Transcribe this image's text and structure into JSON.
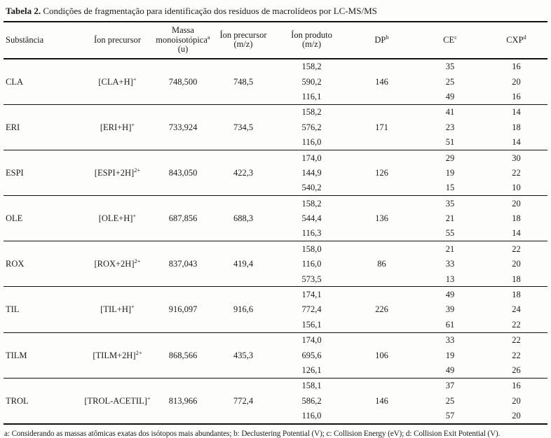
{
  "page": {
    "title_label": "Tabela 2.",
    "title_text": "Condições de fragmentação para identificação dos resíduos de macrolídeos por LC-MS/MS",
    "footnote": "a: Considerando as massas atômicas exatas dos isótopos mais abundantes; b: Declustering Potential (V); c: Collision Energy (eV); d: Collision Exit Potential (V)."
  },
  "table": {
    "headers": {
      "substancia": "Substância",
      "ion_precursor": "Íon precursor",
      "massa_l1": "Massa",
      "massa_l2": "monoisotópica",
      "massa_l2_sup": "a",
      "massa_l3": "(u)",
      "precursor_mz_l1": "Íon precursor",
      "precursor_mz_l2": "(m/z)",
      "produto_mz_l1": "Íon produto",
      "produto_mz_l2": "(m/z)",
      "dp": "DP",
      "dp_sup": "b",
      "ce": "CE",
      "ce_sup": "c",
      "cxp": "CXP",
      "cxp_sup": "d"
    },
    "groups": [
      {
        "substancia": "CLA",
        "ion_precursor": "[CLA+H]",
        "charge_sup": "+",
        "massa": "748,500",
        "precursor_mz": "748,5",
        "dp": "146",
        "products": [
          {
            "mz": "158,2",
            "ce": "35",
            "cxp": "16"
          },
          {
            "mz": "590,2",
            "ce": "25",
            "cxp": "20"
          },
          {
            "mz": "116,1",
            "ce": "49",
            "cxp": "16"
          }
        ]
      },
      {
        "substancia": "ERI",
        "ion_precursor": "[ERI+H]",
        "charge_sup": "+",
        "massa": "733,924",
        "precursor_mz": "734,5",
        "dp": "171",
        "products": [
          {
            "mz": "158,2",
            "ce": "41",
            "cxp": "14"
          },
          {
            "mz": "576,2",
            "ce": "23",
            "cxp": "18"
          },
          {
            "mz": "116,0",
            "ce": "51",
            "cxp": "14"
          }
        ]
      },
      {
        "substancia": "ESPI",
        "ion_precursor": "[ESPI+2H]",
        "charge_sup": "2+",
        "massa": "843,050",
        "precursor_mz": "422,3",
        "dp": "126",
        "products": [
          {
            "mz": "174,0",
            "ce": "29",
            "cxp": "30"
          },
          {
            "mz": "144,9",
            "ce": "19",
            "cxp": "22"
          },
          {
            "mz": "540,2",
            "ce": "15",
            "cxp": "10"
          }
        ]
      },
      {
        "substancia": "OLE",
        "ion_precursor": "[OLE+H]",
        "charge_sup": "+",
        "massa": "687,856",
        "precursor_mz": "688,3",
        "dp": "136",
        "products": [
          {
            "mz": "158,2",
            "ce": "35",
            "cxp": "20"
          },
          {
            "mz": "544,4",
            "ce": "21",
            "cxp": "18"
          },
          {
            "mz": "116,3",
            "ce": "55",
            "cxp": "14"
          }
        ]
      },
      {
        "substancia": "ROX",
        "ion_precursor": "[ROX+2H]",
        "charge_sup": "2+",
        "massa": "837,043",
        "precursor_mz": "419,4",
        "dp": "86",
        "products": [
          {
            "mz": "158,0",
            "ce": "21",
            "cxp": "22"
          },
          {
            "mz": "116,0",
            "ce": "33",
            "cxp": "20"
          },
          {
            "mz": "573,5",
            "ce": "13",
            "cxp": "18"
          }
        ]
      },
      {
        "substancia": "TIL",
        "ion_precursor": "[TIL+H]",
        "charge_sup": "+",
        "massa": "916,097",
        "precursor_mz": "916,6",
        "dp": "226",
        "products": [
          {
            "mz": "174,1",
            "ce": "49",
            "cxp": "18"
          },
          {
            "mz": "772,4",
            "ce": "39",
            "cxp": "24"
          },
          {
            "mz": "156,1",
            "ce": "61",
            "cxp": "22"
          }
        ]
      },
      {
        "substancia": "TILM",
        "ion_precursor": "[TILM+2H]",
        "charge_sup": "2+",
        "massa": "868,566",
        "precursor_mz": "435,3",
        "dp": "106",
        "products": [
          {
            "mz": "174,0",
            "ce": "33",
            "cxp": "22"
          },
          {
            "mz": "695,6",
            "ce": "19",
            "cxp": "22"
          },
          {
            "mz": "126,1",
            "ce": "49",
            "cxp": "26"
          }
        ]
      },
      {
        "substancia": "TROL",
        "ion_precursor": "[TROL-ACETIL]",
        "charge_sup": "+",
        "massa": "813,966",
        "precursor_mz": "772,4",
        "dp": "146",
        "products": [
          {
            "mz": "158,1",
            "ce": "37",
            "cxp": "16"
          },
          {
            "mz": "586,2",
            "ce": "25",
            "cxp": "20"
          },
          {
            "mz": "116,0",
            "ce": "57",
            "cxp": "20"
          }
        ]
      }
    ]
  }
}
